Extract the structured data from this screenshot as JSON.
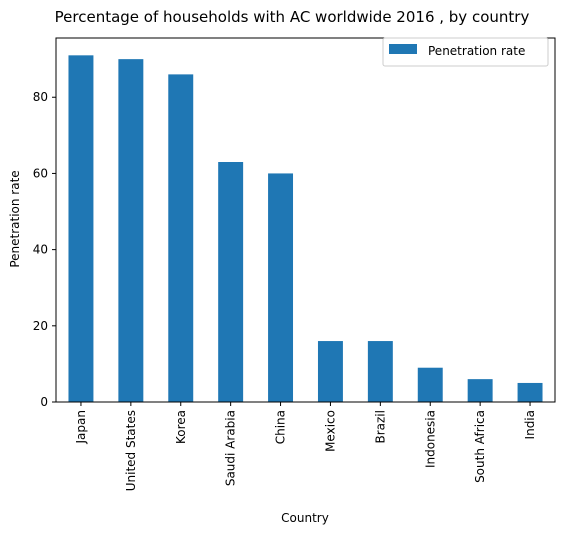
{
  "chart_data": {
    "type": "bar",
    "title": "Percentage of households with AC worldwide 2016 , by country",
    "xlabel": "Country",
    "ylabel": "Penetration rate",
    "categories": [
      "Japan",
      "United States",
      "Korea",
      "Saudi Arabia",
      "China",
      "Mexico",
      "Brazil",
      "Indonesia",
      "South Africa",
      "India"
    ],
    "series": [
      {
        "name": "Penetration rate",
        "values": [
          91,
          90,
          86,
          63,
          60,
          16,
          16,
          9,
          6,
          5
        ],
        "color": "#1f77b4"
      }
    ],
    "ylim": [
      0,
      95.55
    ],
    "yticks": [
      0,
      20,
      40,
      60,
      80
    ],
    "legend": {
      "position": "top-right"
    },
    "grid": false
  }
}
